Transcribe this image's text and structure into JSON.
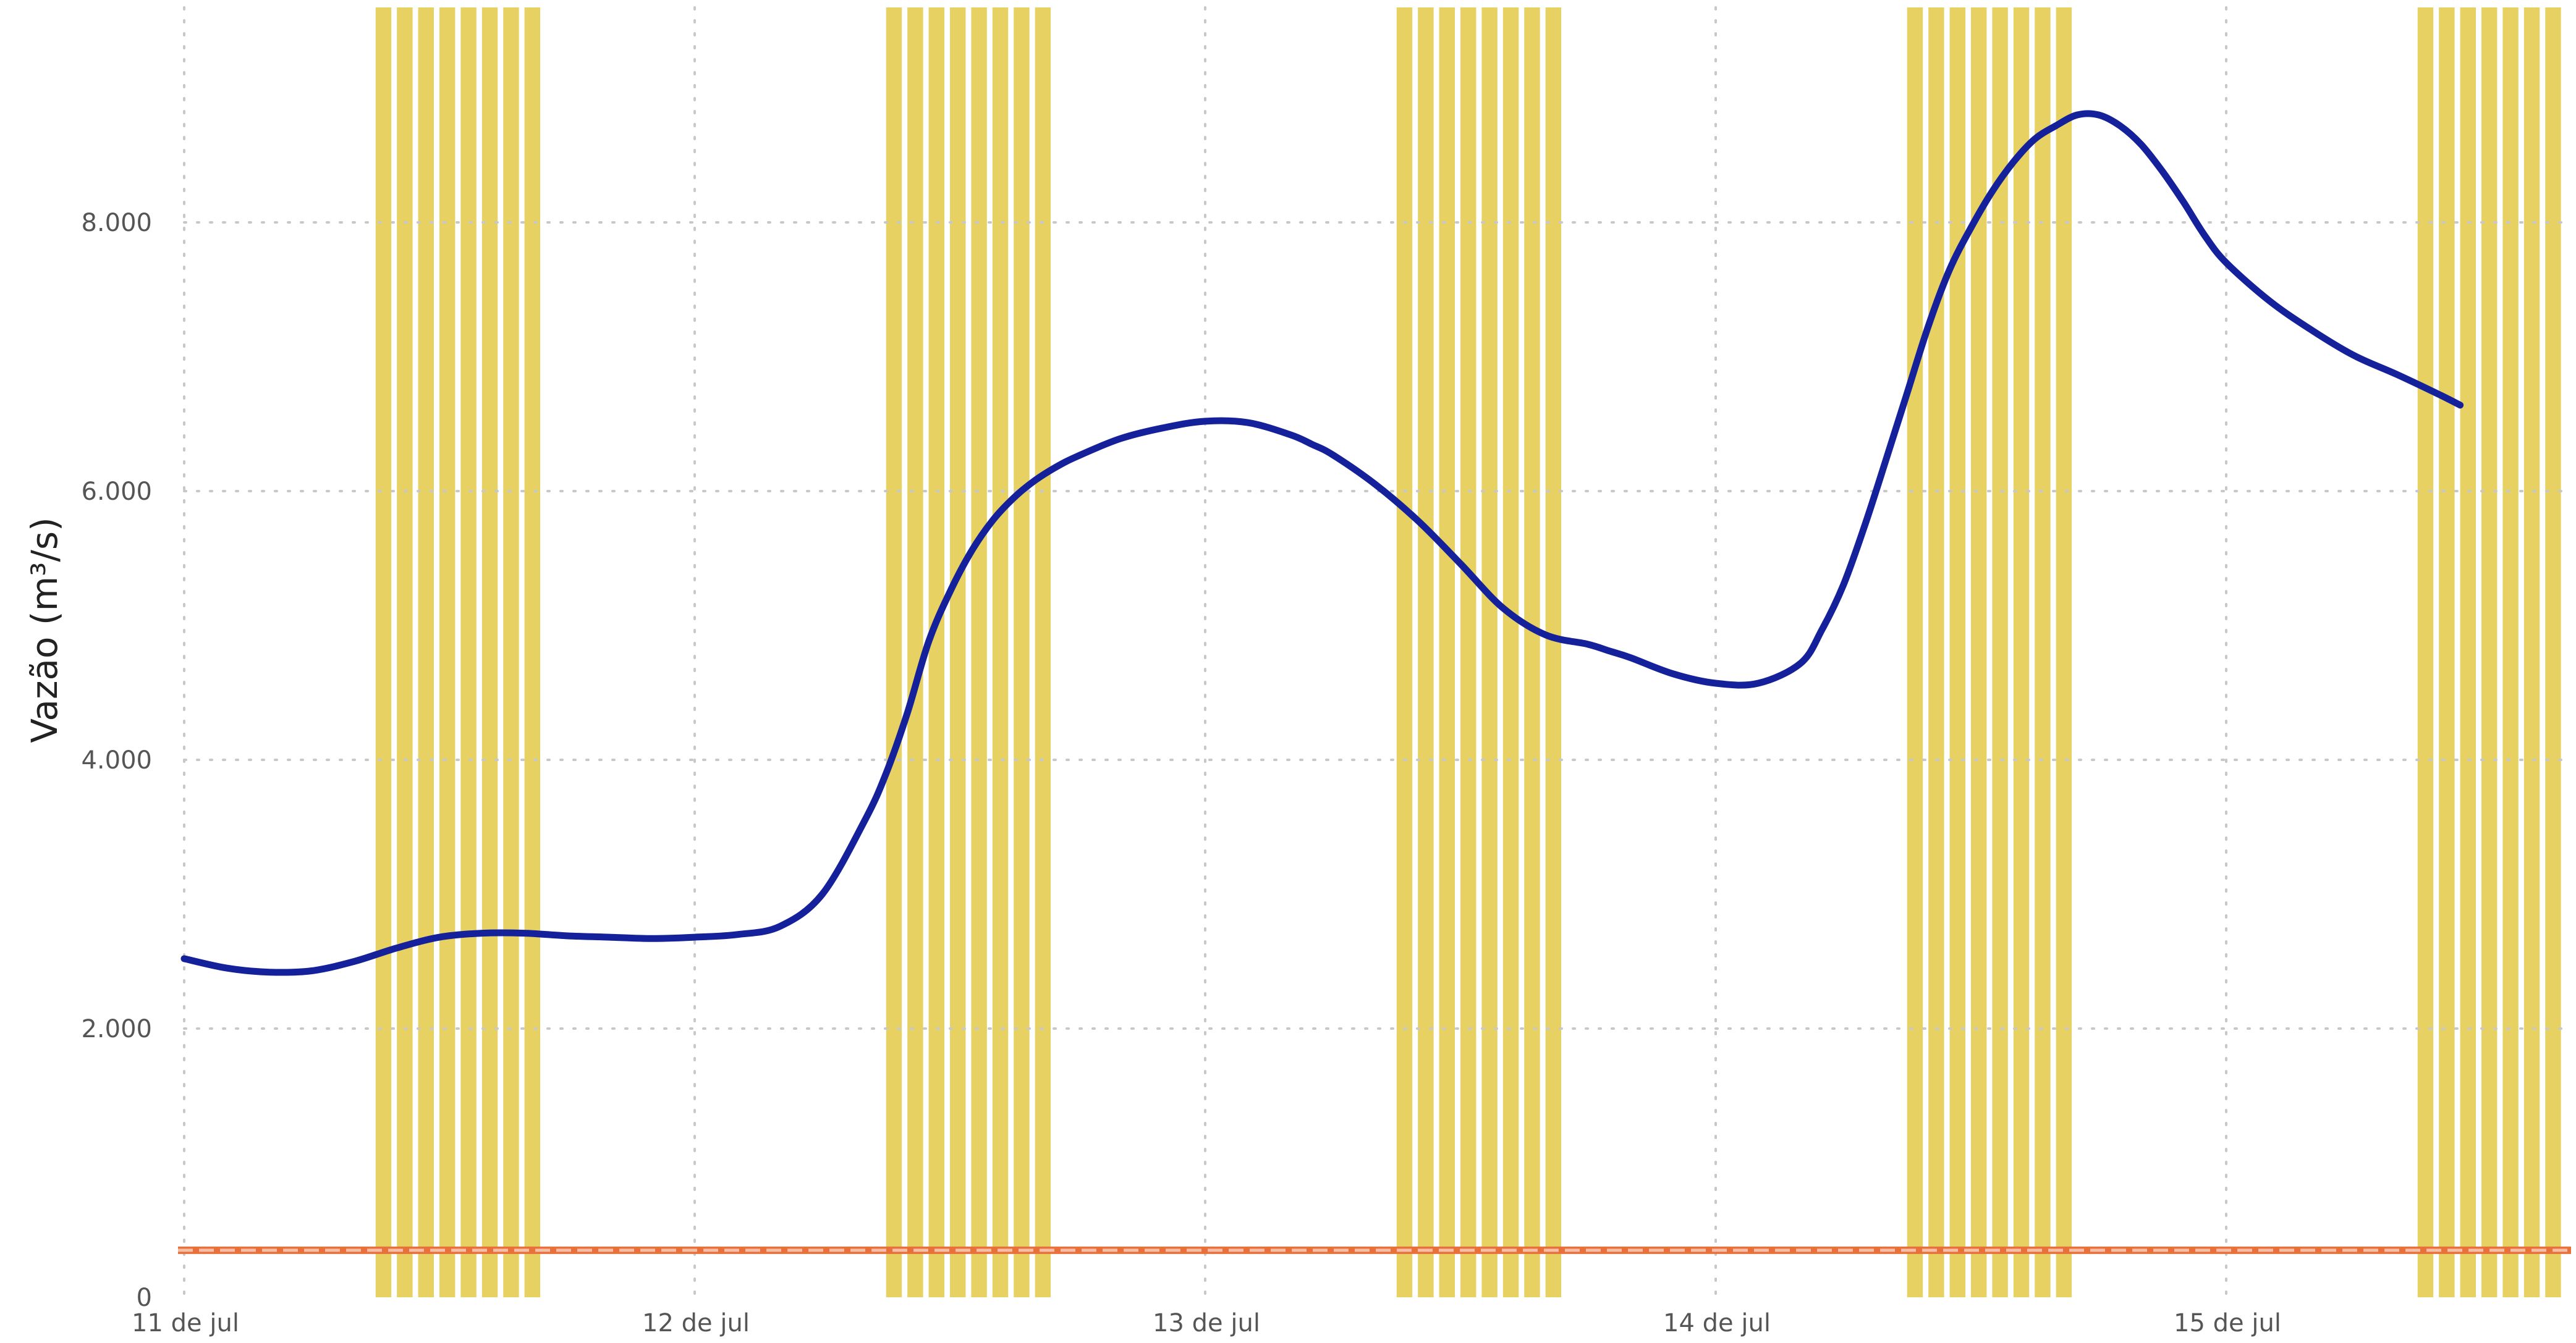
{
  "chart_data": {
    "type": "line",
    "title": "",
    "xlabel": "",
    "ylabel": "Vazão (m³/s)",
    "ylim": [
      0,
      9600
    ],
    "y_ticks": [
      0,
      2000,
      4000,
      6000,
      8000
    ],
    "y_tick_labels": [
      "0",
      "2.000",
      "4.000",
      "6.000",
      "8.000"
    ],
    "x_axis_type": "date",
    "xlim": [
      "2024-07-11T00:00",
      "2024-07-15T23:00"
    ],
    "x_ticks": [
      "2024-07-11T00:00",
      "2024-07-12T00:00",
      "2024-07-13T00:00",
      "2024-07-14T00:00",
      "2024-07-15T00:00"
    ],
    "x_tick_labels": [
      "11 de jul",
      "12 de jul",
      "13 de jul",
      "14 de jul",
      "15 de jul"
    ],
    "grid": true,
    "series": [
      {
        "values_kind": "line",
        "color": "#14219a",
        "x": [
          "2024-07-11T00:00",
          "2024-07-11T02:00",
          "2024-07-11T04:00",
          "2024-07-11T06:00",
          "2024-07-11T08:00",
          "2024-07-11T10:00",
          "2024-07-11T12:00",
          "2024-07-11T14:00",
          "2024-07-11T16:00",
          "2024-07-11T18:00",
          "2024-07-11T20:00",
          "2024-07-11T22:00",
          "2024-07-12T00:00",
          "2024-07-12T02:00",
          "2024-07-12T04:00",
          "2024-07-12T06:00",
          "2024-07-12T08:00",
          "2024-07-12T09:00",
          "2024-07-12T10:00",
          "2024-07-12T11:00",
          "2024-07-12T12:00",
          "2024-07-12T13:00",
          "2024-07-12T14:00",
          "2024-07-12T15:00",
          "2024-07-12T16:00",
          "2024-07-12T17:00",
          "2024-07-12T18:00",
          "2024-07-12T20:00",
          "2024-07-12T22:00",
          "2024-07-13T00:00",
          "2024-07-13T02:00",
          "2024-07-13T04:00",
          "2024-07-13T05:00",
          "2024-07-13T06:00",
          "2024-07-13T08:00",
          "2024-07-13T10:00",
          "2024-07-13T12:00",
          "2024-07-13T14:00",
          "2024-07-13T16:00",
          "2024-07-13T18:00",
          "2024-07-13T19:00",
          "2024-07-13T20:00",
          "2024-07-13T22:00",
          "2024-07-14T00:00",
          "2024-07-14T02:00",
          "2024-07-14T04:00",
          "2024-07-14T05:00",
          "2024-07-14T06:00",
          "2024-07-14T07:00",
          "2024-07-14T08:00",
          "2024-07-14T09:00",
          "2024-07-14T10:00",
          "2024-07-14T11:00",
          "2024-07-14T12:00",
          "2024-07-14T13:00",
          "2024-07-14T14:00",
          "2024-07-14T15:00",
          "2024-07-14T16:00",
          "2024-07-14T17:00",
          "2024-07-14T18:00",
          "2024-07-14T19:00",
          "2024-07-14T20:00",
          "2024-07-14T21:00",
          "2024-07-14T22:00",
          "2024-07-14T23:00",
          "2024-07-15T00:00",
          "2024-07-15T02:00",
          "2024-07-15T04:00",
          "2024-07-15T06:00",
          "2024-07-15T08:00",
          "2024-07-15T10:00",
          "2024-07-15T11:00"
        ],
        "values": [
          2520,
          2450,
          2420,
          2430,
          2500,
          2600,
          2680,
          2710,
          2710,
          2690,
          2680,
          2670,
          2680,
          2700,
          2760,
          3000,
          3550,
          3900,
          4350,
          4880,
          5250,
          5550,
          5780,
          5950,
          6080,
          6180,
          6260,
          6390,
          6470,
          6520,
          6510,
          6420,
          6350,
          6270,
          6050,
          5780,
          5460,
          5130,
          4930,
          4860,
          4810,
          4760,
          4640,
          4570,
          4570,
          4720,
          4970,
          5300,
          5740,
          6230,
          6730,
          7230,
          7650,
          7960,
          8230,
          8450,
          8620,
          8720,
          8800,
          8800,
          8720,
          8580,
          8380,
          8150,
          7900,
          7700,
          7420,
          7200,
          7010,
          6870,
          6720,
          6640
        ],
        "note_hidden": ""
      }
    ],
    "reference_line": {
      "value": 350,
      "color": "#e8703a",
      "style": "dashed"
    },
    "bands": {
      "color": "#e6d162",
      "ranges": [
        [
          "2024-07-11T09:00",
          "2024-07-11T17:00"
        ],
        [
          "2024-07-12T09:00",
          "2024-07-12T17:00"
        ],
        [
          "2024-07-13T09:00",
          "2024-07-13T17:00"
        ],
        [
          "2024-07-14T09:00",
          "2024-07-14T17:00"
        ],
        [
          "2024-07-15T09:00",
          "2024-07-15T17:00"
        ]
      ]
    },
    "colors": {
      "line": "#14219a",
      "reference": "#e8703a",
      "band": "#e6d162",
      "grid": "#c8c8c8",
      "tick": "#555555"
    }
  }
}
